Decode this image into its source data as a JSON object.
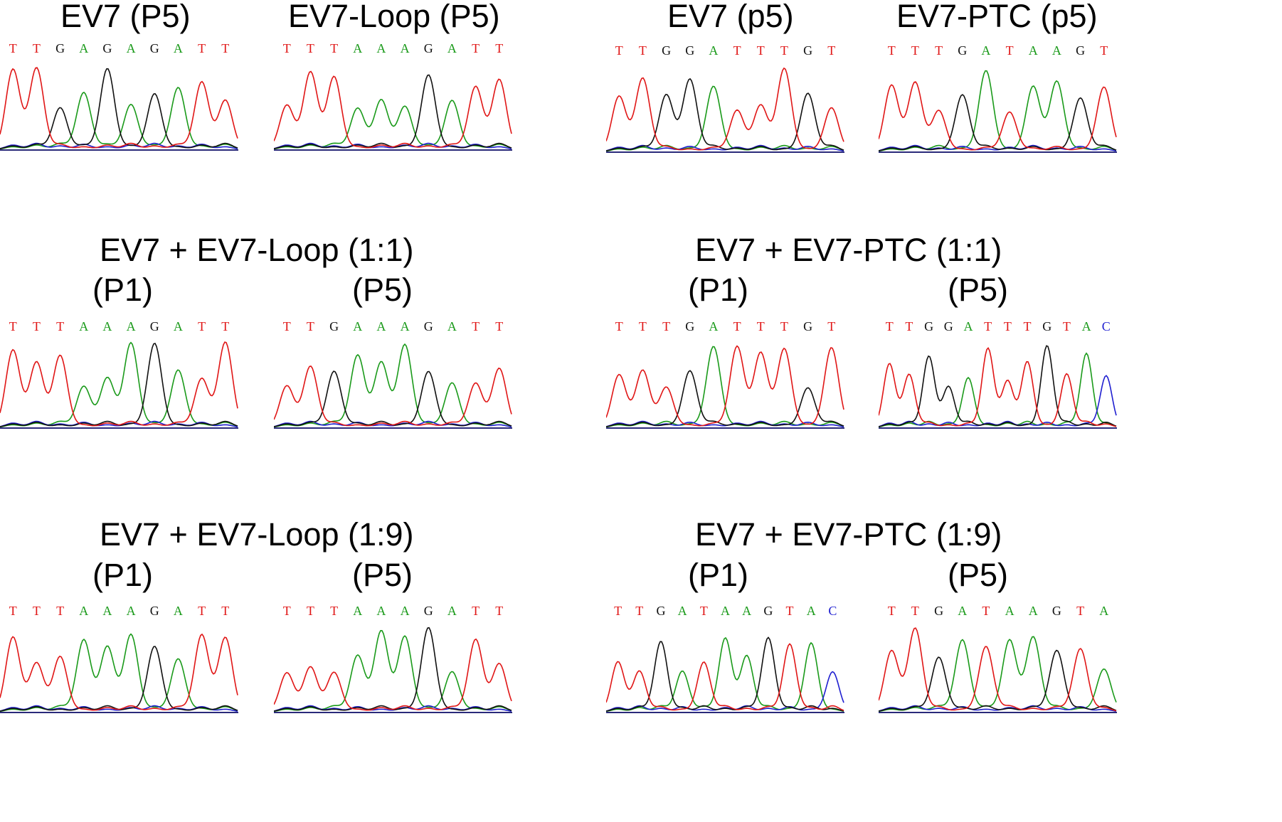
{
  "colors": {
    "A": "#1a9a1a",
    "C": "#1f1fd0",
    "G": "#111111",
    "T": "#e01616",
    "baseline": "#2a2a7a"
  },
  "titles": {
    "t1": "EV7 (P5)",
    "t2": "EV7-Loop (P5)",
    "t3": "EV7 (p5)",
    "t4": "EV7-PTC (p5)",
    "g1": "EV7 + EV7-Loop (1:1)",
    "g2": "EV7 + EV7-PTC (1:1)",
    "g3": "EV7 + EV7-Loop (1:9)",
    "g4": "EV7 + EV7-PTC (1:9)"
  },
  "passages": {
    "p1": "(P1)",
    "p5": "(P5)"
  },
  "chromatograms": [
    {
      "id": "c1",
      "sequence": [
        "T",
        "T",
        "G",
        "A",
        "G",
        "A",
        "G",
        "A",
        "T",
        "T"
      ]
    },
    {
      "id": "c2",
      "sequence": [
        "T",
        "T",
        "T",
        "A",
        "A",
        "A",
        "G",
        "A",
        "T",
        "T"
      ]
    },
    {
      "id": "c3",
      "sequence": [
        "T",
        "T",
        "G",
        "G",
        "A",
        "T",
        "T",
        "T",
        "G",
        "T"
      ]
    },
    {
      "id": "c4",
      "sequence": [
        "T",
        "T",
        "T",
        "G",
        "A",
        "T",
        "A",
        "A",
        "G",
        "T"
      ]
    },
    {
      "id": "c5",
      "sequence": [
        "T",
        "T",
        "T",
        "A",
        "A",
        "A",
        "G",
        "A",
        "T",
        "T"
      ]
    },
    {
      "id": "c6",
      "sequence": [
        "T",
        "T",
        "G",
        "A",
        "A",
        "A",
        "G",
        "A",
        "T",
        "T"
      ]
    },
    {
      "id": "c7",
      "sequence": [
        "T",
        "T",
        "T",
        "G",
        "A",
        "T",
        "T",
        "T",
        "G",
        "T"
      ]
    },
    {
      "id": "c8",
      "sequence": [
        "T",
        "T",
        "G",
        "G",
        "A",
        "T",
        "T",
        "T",
        "G",
        "T",
        "A",
        "C"
      ]
    },
    {
      "id": "c9",
      "sequence": [
        "T",
        "T",
        "T",
        "A",
        "A",
        "A",
        "G",
        "A",
        "T",
        "T"
      ]
    },
    {
      "id": "c10",
      "sequence": [
        "T",
        "T",
        "T",
        "A",
        "A",
        "A",
        "G",
        "A",
        "T",
        "T"
      ]
    },
    {
      "id": "c11",
      "sequence": [
        "T",
        "T",
        "G",
        "A",
        "T",
        "A",
        "A",
        "G",
        "T",
        "A",
        "C"
      ]
    },
    {
      "id": "c12",
      "sequence": [
        "T",
        "T",
        "G",
        "A",
        "T",
        "A",
        "A",
        "G",
        "T",
        "A"
      ]
    }
  ]
}
